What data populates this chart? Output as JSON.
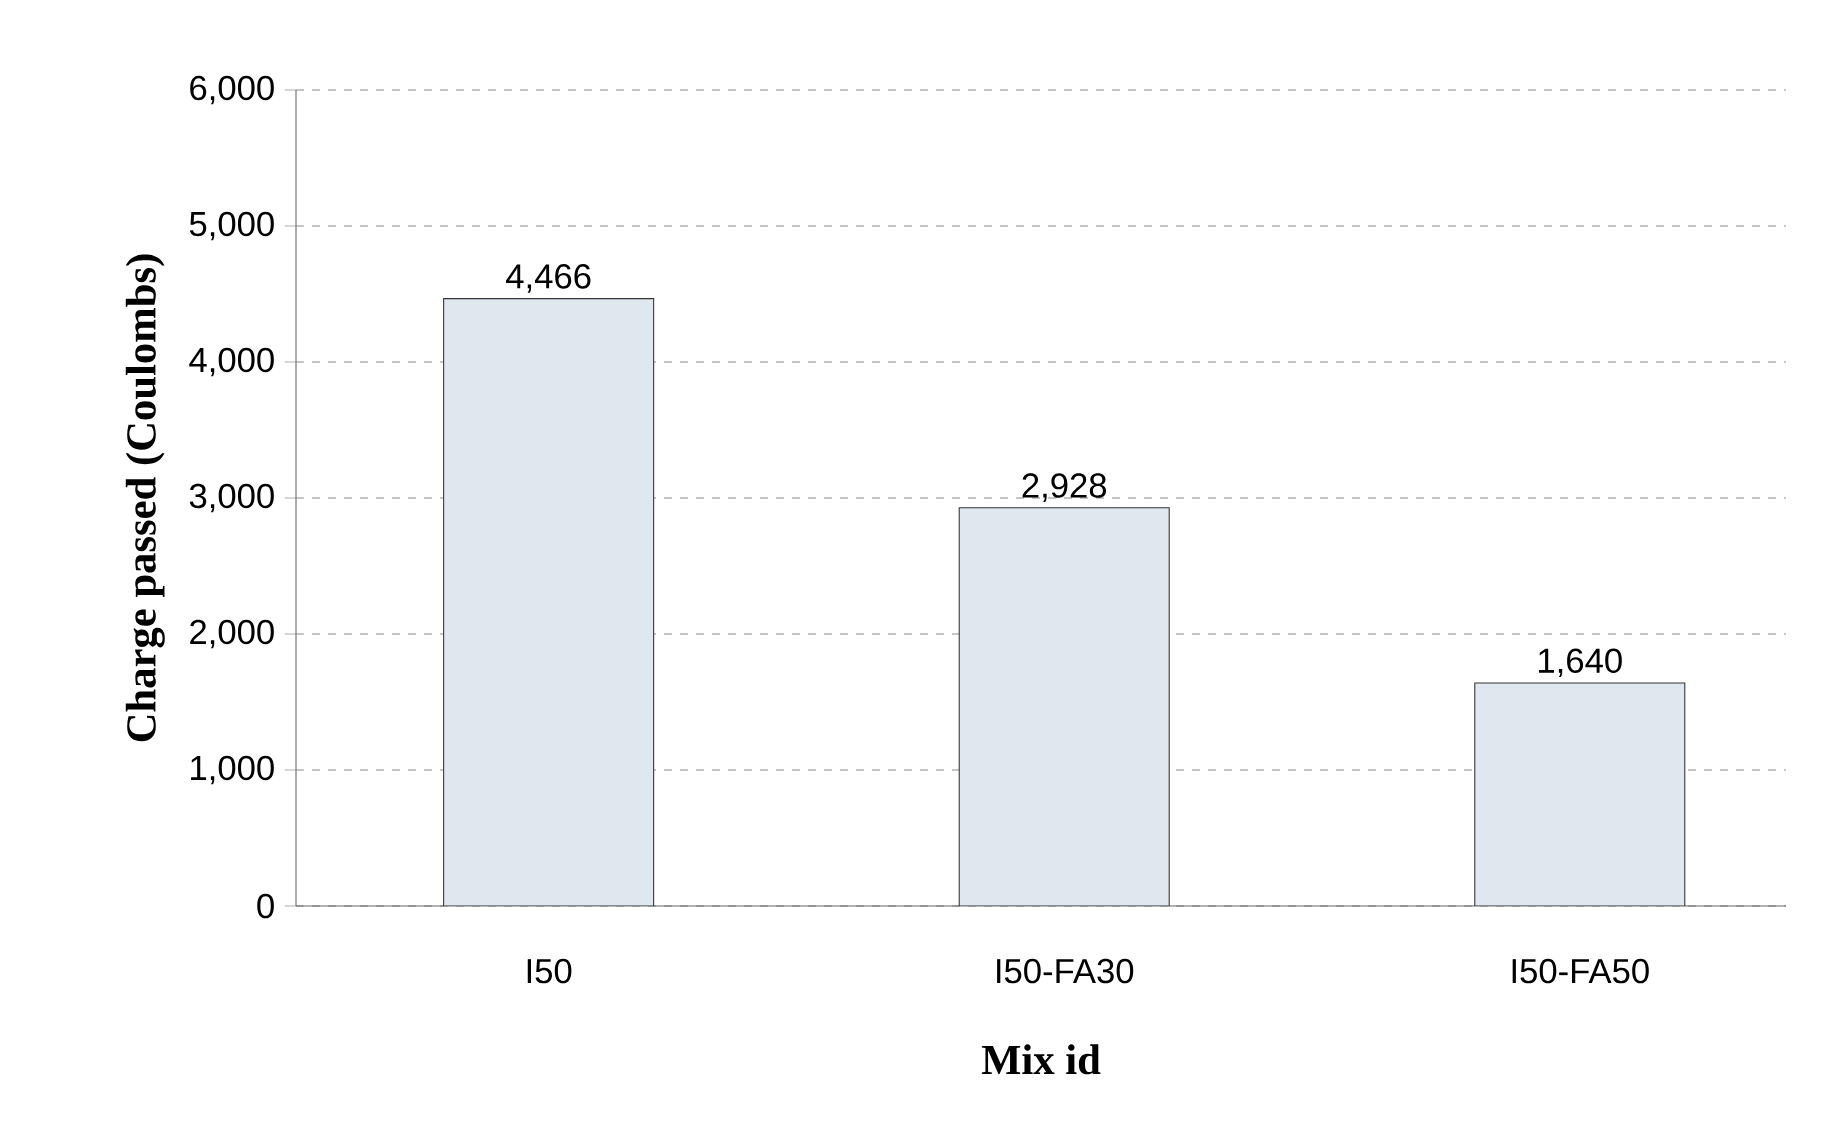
{
  "chart_data": {
    "type": "bar",
    "xlabel": "Mix id",
    "ylabel": "Charge passed (Coulombs)",
    "categories": [
      "I50",
      "I50-FA30",
      "I50-FA50"
    ],
    "values": [
      4466,
      2928,
      1640
    ],
    "value_labels": [
      "4,466",
      "2,928",
      "1,640"
    ],
    "color": "#e1e7ef",
    "ylim": [
      0,
      6000
    ],
    "yticks": [
      {
        "value": 0,
        "label": "0"
      },
      {
        "value": 1000,
        "label": "1,000"
      },
      {
        "value": 2000,
        "label": "2,000"
      },
      {
        "value": 3000,
        "label": "3,000"
      },
      {
        "value": 4000,
        "label": "4,000"
      },
      {
        "value": 5000,
        "label": "5,000"
      },
      {
        "value": 6000,
        "label": "6,000"
      }
    ],
    "grid": "y"
  }
}
